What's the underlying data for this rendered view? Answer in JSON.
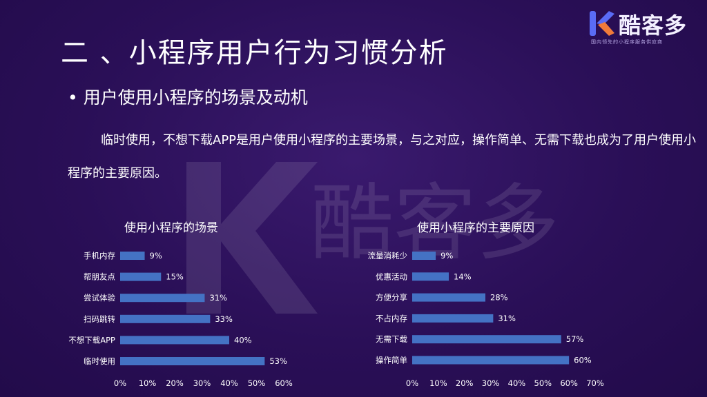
{
  "title": "二 、小程序用户行为习惯分析",
  "bullet": "用户使用小程序的场景及动机",
  "paragraph": "临时使用，不想下载APP是用户使用小程序的主要场景，与之对应，操作简单、无需下载也成为了用户使用小程序的主要原因。",
  "logo": {
    "name": "酷客多",
    "tagline": "国内领先的小程序服务供应商",
    "icon": "k-logo-icon",
    "colors": [
      "#5a6cf5",
      "#f07a3a"
    ]
  },
  "colors": {
    "bar": "#4472c4",
    "background": "#2a0f57"
  },
  "chart_data": [
    {
      "type": "bar",
      "orientation": "horizontal",
      "title": "使用小程序的场景",
      "categories": [
        "手机内存",
        "帮朋友点",
        "尝试体验",
        "扫码跳转",
        "不想下载APP",
        "临时使用"
      ],
      "values": [
        9,
        15,
        31,
        33,
        40,
        53
      ],
      "labels": [
        "9%",
        "15%",
        "31%",
        "33%",
        "40%",
        "53%"
      ],
      "xlim": [
        0,
        60
      ],
      "xticks": [
        "0%",
        "10%",
        "20%",
        "30%",
        "40%",
        "50%",
        "60%"
      ],
      "grid": false
    },
    {
      "type": "bar",
      "orientation": "horizontal",
      "title": "使用小程序的主要原因",
      "categories": [
        "流量消耗少",
        "优惠活动",
        "方便分享",
        "不占内存",
        "无需下载",
        "操作简单"
      ],
      "values": [
        9,
        14,
        28,
        31,
        57,
        60
      ],
      "labels": [
        "9%",
        "14%",
        "28%",
        "31%",
        "57%",
        "60%"
      ],
      "xlim": [
        0,
        70
      ],
      "xticks": [
        "0%",
        "10%",
        "20%",
        "30%",
        "40%",
        "50%",
        "60%",
        "70%"
      ],
      "grid": false
    }
  ]
}
